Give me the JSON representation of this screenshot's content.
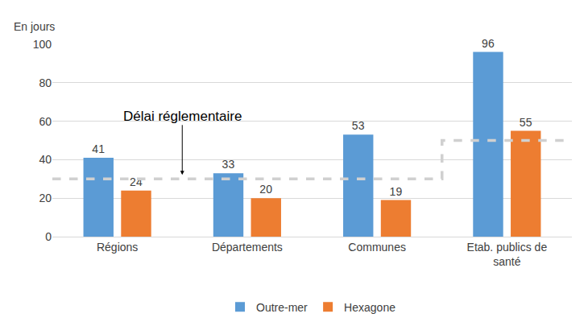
{
  "chart_data": {
    "type": "bar",
    "ylabel": "En jours",
    "categories": [
      "Régions",
      "Départements",
      "Communes",
      "Etab. publics de santé"
    ],
    "series": [
      {
        "name": "Outre-mer",
        "color": "#5B9BD5",
        "values": [
          41,
          33,
          53,
          96
        ]
      },
      {
        "name": "Hexagone",
        "color": "#ED7D31",
        "values": [
          24,
          20,
          19,
          55
        ]
      }
    ],
    "threshold": {
      "label": "Délai réglementaire",
      "values": [
        30,
        30,
        30,
        50
      ]
    },
    "ylim": [
      0,
      100
    ],
    "yticks": [
      0,
      20,
      40,
      60,
      80,
      100
    ],
    "grid": true,
    "data_labels": true,
    "legend": "bottom"
  }
}
